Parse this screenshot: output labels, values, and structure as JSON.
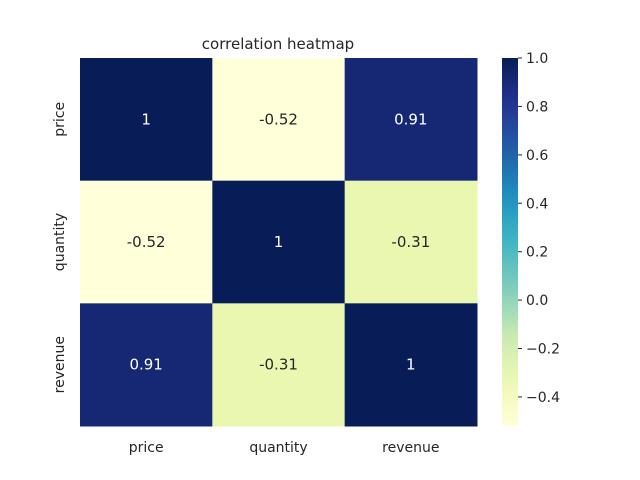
{
  "chart_data": {
    "type": "heatmap",
    "title": "correlation heatmap",
    "xlabel": "",
    "ylabel": "",
    "x_categories": [
      "price",
      "quantity",
      "revenue"
    ],
    "y_categories": [
      "price",
      "quantity",
      "revenue"
    ],
    "values": [
      [
        1,
        -0.52,
        0.91
      ],
      [
        -0.52,
        1,
        -0.31
      ],
      [
        0.91,
        -0.31,
        1
      ]
    ],
    "cell_labels": [
      [
        "1",
        "-0.52",
        "0.91"
      ],
      [
        "-0.52",
        "1",
        "-0.31"
      ],
      [
        "0.91",
        "-0.31",
        "1"
      ]
    ],
    "colormap": "YlGnBu",
    "colorbar": {
      "range": [
        -0.52,
        1.0
      ],
      "ticks": [
        1.0,
        0.8,
        0.6,
        0.4,
        0.2,
        0.0,
        -0.2,
        -0.4
      ],
      "tick_labels": [
        "1.0",
        "0.8",
        "0.6",
        "0.4",
        "0.2",
        "0.0",
        "−0.2",
        "−0.4"
      ]
    },
    "grid": false,
    "legend": "colorbar-right"
  }
}
